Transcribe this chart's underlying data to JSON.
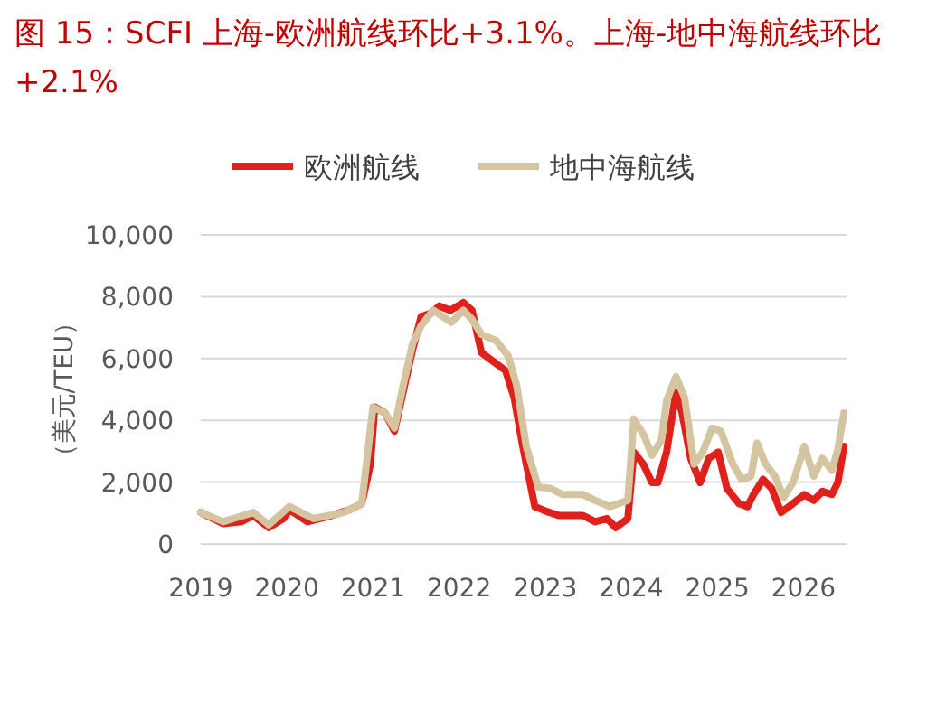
{
  "chart_data": {
    "type": "line",
    "title": "图 15：SCFI 上海-欧洲航线环比+3.1%。上海-地中海航线环比+2.1%",
    "ylabel": "（美元/TEU）",
    "xlim": [
      2019,
      2026.5
    ],
    "xticks": [
      2019,
      2020,
      2021,
      2022,
      2023,
      2024,
      2025,
      2026
    ],
    "ylim": [
      0,
      10000
    ],
    "yticks": [
      {
        "value": 0,
        "label": "0"
      },
      {
        "value": 2000,
        "label": "2,000"
      },
      {
        "value": 4000,
        "label": "4,000"
      },
      {
        "value": 6000,
        "label": "6,000"
      },
      {
        "value": 8000,
        "label": "8,000"
      },
      {
        "value": 10000,
        "label": "10,000"
      }
    ],
    "grid": "y",
    "legend": "top",
    "marker": "none",
    "line_style": "solid",
    "series": [
      {
        "name": "欧洲航线",
        "color": "#e0201b",
        "x": [
          2019,
          2019.26,
          2019.47,
          2019.61,
          2019.79,
          2019.96,
          2020.03,
          2020.24,
          2020.52,
          2020.73,
          2020.87,
          2020.97,
          2021.02,
          2021.14,
          2021.25,
          2021.35,
          2021.46,
          2021.56,
          2021.67,
          2021.77,
          2021.9,
          2022.05,
          2022.15,
          2022.26,
          2022.4,
          2022.54,
          2022.64,
          2022.74,
          2022.88,
          2023.02,
          2023.16,
          2023.44,
          2023.58,
          2023.72,
          2023.82,
          2023.96,
          2024.03,
          2024.14,
          2024.24,
          2024.31,
          2024.41,
          2024.52,
          2024.59,
          2024.69,
          2024.8,
          2024.9,
          2025.01,
          2025.11,
          2025.25,
          2025.35,
          2025.42,
          2025.53,
          2025.63,
          2025.74,
          2025.88,
          2026.01,
          2026.12,
          2026.22,
          2026.33,
          2026.4,
          2026.47
        ],
        "values": [
          1020,
          660,
          720,
          920,
          530,
          820,
          1110,
          720,
          920,
          1110,
          1310,
          2580,
          4430,
          4240,
          3650,
          4920,
          6290,
          7360,
          7460,
          7700,
          7560,
          7810,
          7560,
          6190,
          5900,
          5610,
          4730,
          3160,
          1210,
          1050,
          920,
          920,
          720,
          820,
          530,
          820,
          2970,
          2580,
          1990,
          1990,
          2970,
          4920,
          4240,
          2770,
          1990,
          2770,
          2970,
          1800,
          1310,
          1210,
          1600,
          2090,
          1800,
          1020,
          1310,
          1600,
          1410,
          1700,
          1600,
          1990,
          3160
        ]
      },
      {
        "name": "地中海航线",
        "color": "#d4c5a0",
        "x": [
          2019,
          2019.26,
          2019.61,
          2019.79,
          2020.03,
          2020.31,
          2020.66,
          2020.87,
          2021.0,
          2021.14,
          2021.25,
          2021.35,
          2021.46,
          2021.56,
          2021.7,
          2021.91,
          2022.05,
          2022.15,
          2022.26,
          2022.43,
          2022.57,
          2022.67,
          2022.78,
          2022.92,
          2023.06,
          2023.2,
          2023.44,
          2023.58,
          2023.75,
          2023.96,
          2024.03,
          2024.14,
          2024.24,
          2024.35,
          2024.41,
          2024.52,
          2024.62,
          2024.73,
          2024.83,
          2024.94,
          2025.04,
          2025.18,
          2025.28,
          2025.39,
          2025.46,
          2025.56,
          2025.67,
          2025.77,
          2025.88,
          2026.01,
          2026.12,
          2026.22,
          2026.33,
          2026.4,
          2026.47
        ],
        "values": [
          1020,
          720,
          1020,
          620,
          1210,
          820,
          1020,
          1310,
          4430,
          4240,
          3750,
          5120,
          6480,
          7070,
          7560,
          7170,
          7560,
          7270,
          6780,
          6580,
          6090,
          5120,
          3160,
          1840,
          1800,
          1600,
          1600,
          1410,
          1210,
          1410,
          4040,
          3550,
          2870,
          3360,
          4630,
          5410,
          4730,
          2580,
          2970,
          3750,
          3650,
          2580,
          2090,
          2190,
          3260,
          2580,
          2190,
          1500,
          1990,
          3160,
          2190,
          2770,
          2380,
          3070,
          4240
        ]
      }
    ]
  }
}
